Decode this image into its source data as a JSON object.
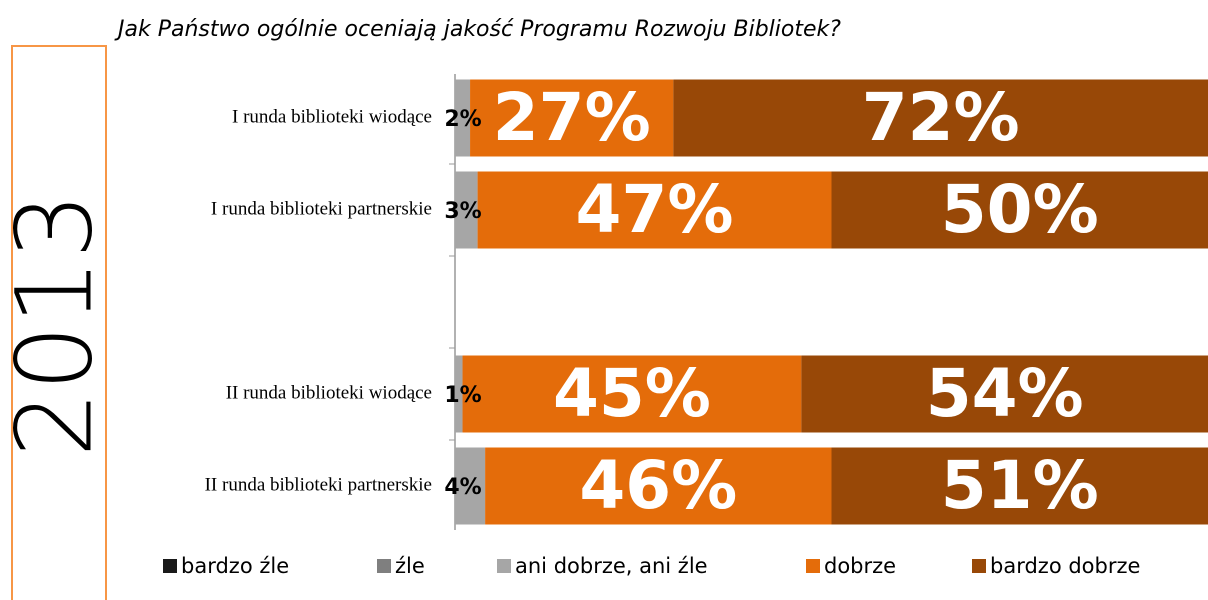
{
  "chart_data": {
    "type": "stacked_bar_horizontal",
    "title": "Jak Państwo ogólnie oceniają jakość Programu Rozwoju Bibliotek?",
    "annotation": "2013",
    "categories": [
      "I runda biblioteki wiodące",
      "I runda biblioteki partnerskie",
      null,
      "II runda biblioteki wiodące",
      "II runda biblioteki partnerskie"
    ],
    "series": [
      {
        "name": "bardzo źle",
        "color": "#1a1a1a",
        "values": [
          null,
          null,
          null,
          null,
          null
        ]
      },
      {
        "name": "źle",
        "color": "#7f7f7f",
        "values": [
          null,
          null,
          null,
          null,
          null
        ]
      },
      {
        "name": "ani dobrze, ani źle",
        "color": "#a6a6a6",
        "values": [
          2,
          3,
          null,
          1,
          4
        ],
        "value_labels": [
          "2%",
          "3%",
          null,
          "1%",
          "4%"
        ]
      },
      {
        "name": "dobrze",
        "color": "#e46c0a",
        "values": [
          27,
          47,
          null,
          45,
          46
        ],
        "value_labels": [
          "27%",
          "47%",
          null,
          "45%",
          "46%"
        ]
      },
      {
        "name": "bardzo dobrze",
        "color": "#984807",
        "values": [
          72,
          50,
          null,
          54,
          51
        ],
        "value_labels": [
          "72%",
          "50%",
          null,
          "54%",
          "51%"
        ]
      }
    ],
    "xlim": [
      0,
      100
    ]
  }
}
